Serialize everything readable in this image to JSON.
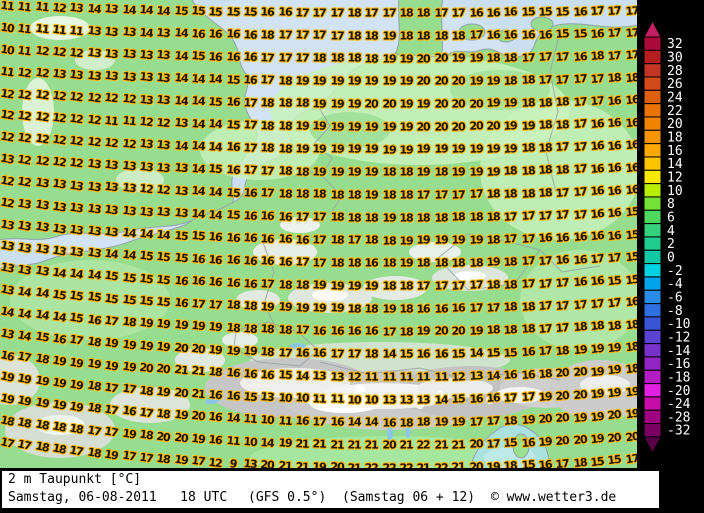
{
  "footer": {
    "parameter": "2 m Taupunkt [°C]",
    "run": "Samstag, 06-08-2011   18 UTC",
    "model": "(GFS 0.5°)",
    "valid": "(Samstag 06 + 12)",
    "credit": "© www.wetter3.de",
    "run_color": "#dd0000"
  },
  "colorbar": {
    "unit": "°C",
    "values": [
      "32",
      "30",
      "28",
      "26",
      "24",
      "22",
      "20",
      "18",
      "16",
      "14",
      "12",
      "10",
      "8",
      "6",
      "4",
      "2",
      "0",
      "-2",
      "-4",
      "-6",
      "-8",
      "-10",
      "-12",
      "-14",
      "-16",
      "-18",
      "-20",
      "-24",
      "-28",
      "-32"
    ],
    "colors": [
      "#aa0a3c",
      "#b41e1e",
      "#c33524",
      "#d04a1a",
      "#de5f0e",
      "#e97305",
      "#f08300",
      "#f89500",
      "#ffa800",
      "#ffc400",
      "#ffe800",
      "#b8ee00",
      "#74e234",
      "#4cd95e",
      "#34d27c",
      "#20cc90",
      "#0ec8a6",
      "#00d2e2",
      "#00a4ec",
      "#2a8cea",
      "#2f6fe3",
      "#3b55d9",
      "#5a43d3",
      "#7732cb",
      "#9425c5",
      "#b31bc3",
      "#e120e1",
      "#c70da8",
      "#a00080",
      "#7a0062"
    ],
    "arrow_top_color": "#c22060",
    "arrow_bottom_color": "#5a0048",
    "label_color": "#ffffff"
  },
  "map": {
    "description": "2 m dewpoint values (°C) plotted on terrain map of central Europe",
    "number_fill": "#151515",
    "number_halo": "#ffb300",
    "grid": {
      "rows": [
        [
          11,
          11,
          11,
          12,
          13,
          14,
          13,
          14,
          14,
          14,
          15,
          15,
          15,
          15,
          15,
          16,
          16,
          17,
          17,
          17,
          18,
          17,
          17,
          18,
          18,
          17,
          17,
          16,
          16,
          16,
          15,
          15,
          15,
          16,
          17,
          17,
          17
        ],
        [
          10,
          11,
          11,
          11,
          11,
          13,
          13,
          13,
          14,
          13,
          14,
          16,
          16,
          16,
          16,
          18,
          17,
          17,
          17,
          17,
          18,
          18,
          19,
          18,
          18,
          18,
          18,
          17,
          16,
          16,
          16,
          16,
          15,
          15,
          16,
          17,
          17
        ],
        [
          10,
          11,
          12,
          12,
          12,
          13,
          13,
          13,
          13,
          13,
          14,
          15,
          16,
          16,
          16,
          17,
          17,
          17,
          18,
          18,
          18,
          18,
          19,
          19,
          20,
          20,
          19,
          19,
          18,
          18,
          17,
          17,
          17,
          16,
          18,
          17,
          17
        ],
        [
          11,
          12,
          12,
          13,
          13,
          13,
          13,
          13,
          13,
          13,
          14,
          14,
          14,
          15,
          16,
          17,
          18,
          19,
          19,
          19,
          19,
          19,
          19,
          19,
          20,
          20,
          20,
          19,
          19,
          18,
          18,
          17,
          17,
          17,
          17,
          18,
          18
        ],
        [
          12,
          12,
          12,
          12,
          12,
          12,
          12,
          12,
          13,
          13,
          14,
          14,
          15,
          16,
          17,
          18,
          18,
          18,
          19,
          19,
          19,
          20,
          20,
          19,
          19,
          20,
          20,
          20,
          19,
          19,
          18,
          18,
          18,
          17,
          17,
          16,
          16
        ],
        [
          12,
          12,
          12,
          12,
          12,
          12,
          11,
          11,
          12,
          12,
          13,
          14,
          14,
          15,
          17,
          18,
          18,
          19,
          19,
          19,
          19,
          19,
          19,
          19,
          20,
          20,
          20,
          20,
          20,
          19,
          19,
          18,
          18,
          17,
          16,
          16,
          16
        ],
        [
          12,
          12,
          12,
          12,
          12,
          12,
          12,
          12,
          13,
          13,
          14,
          14,
          14,
          16,
          17,
          18,
          18,
          19,
          19,
          19,
          19,
          19,
          19,
          19,
          19,
          19,
          19,
          19,
          19,
          19,
          18,
          18,
          17,
          17,
          16,
          16,
          16
        ],
        [
          13,
          12,
          12,
          12,
          12,
          13,
          13,
          13,
          13,
          13,
          13,
          14,
          15,
          16,
          17,
          17,
          18,
          18,
          19,
          19,
          19,
          19,
          18,
          18,
          19,
          18,
          19,
          19,
          19,
          18,
          18,
          18,
          18,
          17,
          16,
          16,
          16
        ],
        [
          12,
          12,
          13,
          13,
          13,
          13,
          13,
          13,
          12,
          12,
          13,
          14,
          14,
          15,
          16,
          17,
          18,
          18,
          18,
          18,
          18,
          19,
          18,
          18,
          17,
          17,
          17,
          17,
          18,
          18,
          18,
          18,
          17,
          17,
          16,
          16,
          16
        ],
        [
          12,
          13,
          13,
          13,
          13,
          13,
          13,
          13,
          13,
          13,
          13,
          14,
          14,
          15,
          16,
          16,
          16,
          17,
          17,
          18,
          18,
          18,
          19,
          18,
          18,
          18,
          18,
          18,
          18,
          17,
          17,
          17,
          17,
          17,
          16,
          16,
          15
        ],
        [
          13,
          13,
          13,
          13,
          13,
          13,
          13,
          14,
          14,
          14,
          15,
          15,
          16,
          16,
          16,
          16,
          16,
          16,
          17,
          18,
          17,
          18,
          18,
          19,
          19,
          19,
          19,
          19,
          18,
          17,
          17,
          16,
          16,
          16,
          16,
          16,
          15
        ],
        [
          13,
          13,
          13,
          13,
          13,
          13,
          14,
          14,
          15,
          15,
          15,
          16,
          16,
          16,
          16,
          16,
          16,
          17,
          17,
          18,
          18,
          16,
          18,
          19,
          18,
          18,
          18,
          18,
          19,
          18,
          17,
          17,
          16,
          16,
          17,
          17,
          15
        ],
        [
          13,
          13,
          13,
          14,
          14,
          14,
          15,
          15,
          15,
          15,
          16,
          16,
          16,
          16,
          16,
          17,
          18,
          18,
          19,
          19,
          19,
          19,
          18,
          18,
          17,
          17,
          17,
          17,
          18,
          18,
          17,
          17,
          17,
          16,
          16,
          15,
          15
        ],
        [
          13,
          14,
          14,
          15,
          15,
          15,
          15,
          15,
          15,
          15,
          16,
          17,
          17,
          18,
          18,
          19,
          19,
          19,
          19,
          19,
          18,
          18,
          19,
          18,
          16,
          16,
          16,
          17,
          17,
          18,
          18,
          17,
          17,
          17,
          17,
          17,
          16
        ],
        [
          14,
          14,
          14,
          14,
          15,
          16,
          17,
          18,
          19,
          19,
          19,
          19,
          19,
          18,
          18,
          18,
          18,
          17,
          16,
          16,
          16,
          16,
          17,
          18,
          19,
          20,
          20,
          19,
          18,
          18,
          18,
          17,
          17,
          18,
          18,
          18,
          18
        ],
        [
          13,
          14,
          15,
          16,
          17,
          18,
          19,
          19,
          19,
          19,
          20,
          20,
          19,
          19,
          19,
          18,
          17,
          16,
          16,
          17,
          17,
          18,
          14,
          15,
          16,
          16,
          15,
          14,
          15,
          15,
          16,
          17,
          18,
          19,
          19,
          19,
          18
        ],
        [
          16,
          17,
          18,
          19,
          19,
          19,
          19,
          19,
          20,
          20,
          21,
          21,
          18,
          16,
          16,
          16,
          15,
          14,
          13,
          13,
          12,
          11,
          11,
          11,
          11,
          11,
          12,
          13,
          14,
          16,
          16,
          18,
          20,
          20,
          19,
          19,
          18
        ],
        [
          19,
          19,
          19,
          19,
          19,
          18,
          17,
          17,
          18,
          19,
          20,
          21,
          16,
          16,
          15,
          13,
          10,
          10,
          11,
          11,
          10,
          10,
          13,
          13,
          13,
          14,
          15,
          16,
          16,
          17,
          17,
          19,
          20,
          20,
          19,
          19,
          19
        ],
        [
          19,
          19,
          19,
          19,
          19,
          18,
          17,
          16,
          17,
          18,
          19,
          20,
          16,
          14,
          11,
          10,
          11,
          16,
          17,
          16,
          14,
          14,
          16,
          18,
          18,
          19,
          19,
          17,
          17,
          18,
          19,
          20,
          20,
          19,
          19,
          20,
          19
        ],
        [
          18,
          18,
          18,
          18,
          18,
          17,
          17,
          19,
          18,
          20,
          20,
          19,
          16,
          11,
          10,
          14,
          19,
          21,
          21,
          21,
          21,
          21,
          20,
          21,
          22,
          21,
          21,
          20,
          17,
          15,
          16,
          19,
          20,
          20,
          19,
          20,
          20
        ],
        [
          17,
          17,
          18,
          18,
          17,
          18,
          19,
          17,
          17,
          18,
          19,
          17,
          12,
          9,
          13,
          20,
          21,
          21,
          19,
          20,
          21,
          22,
          22,
          22,
          21,
          22,
          21,
          20,
          19,
          18,
          15,
          16,
          17,
          18,
          15,
          15,
          17
        ]
      ]
    }
  },
  "colors": {
    "background": "#000000",
    "sea": "#cbdff2",
    "land": "#97dd8f",
    "land_light": "#c9f2bd",
    "terrain_gray": "#c9c9c9",
    "terrain_white": "#ffffff",
    "adriatic": "#a9e2de",
    "coast_line": "#8fa0ad",
    "border_line": "#9aa4a8"
  }
}
